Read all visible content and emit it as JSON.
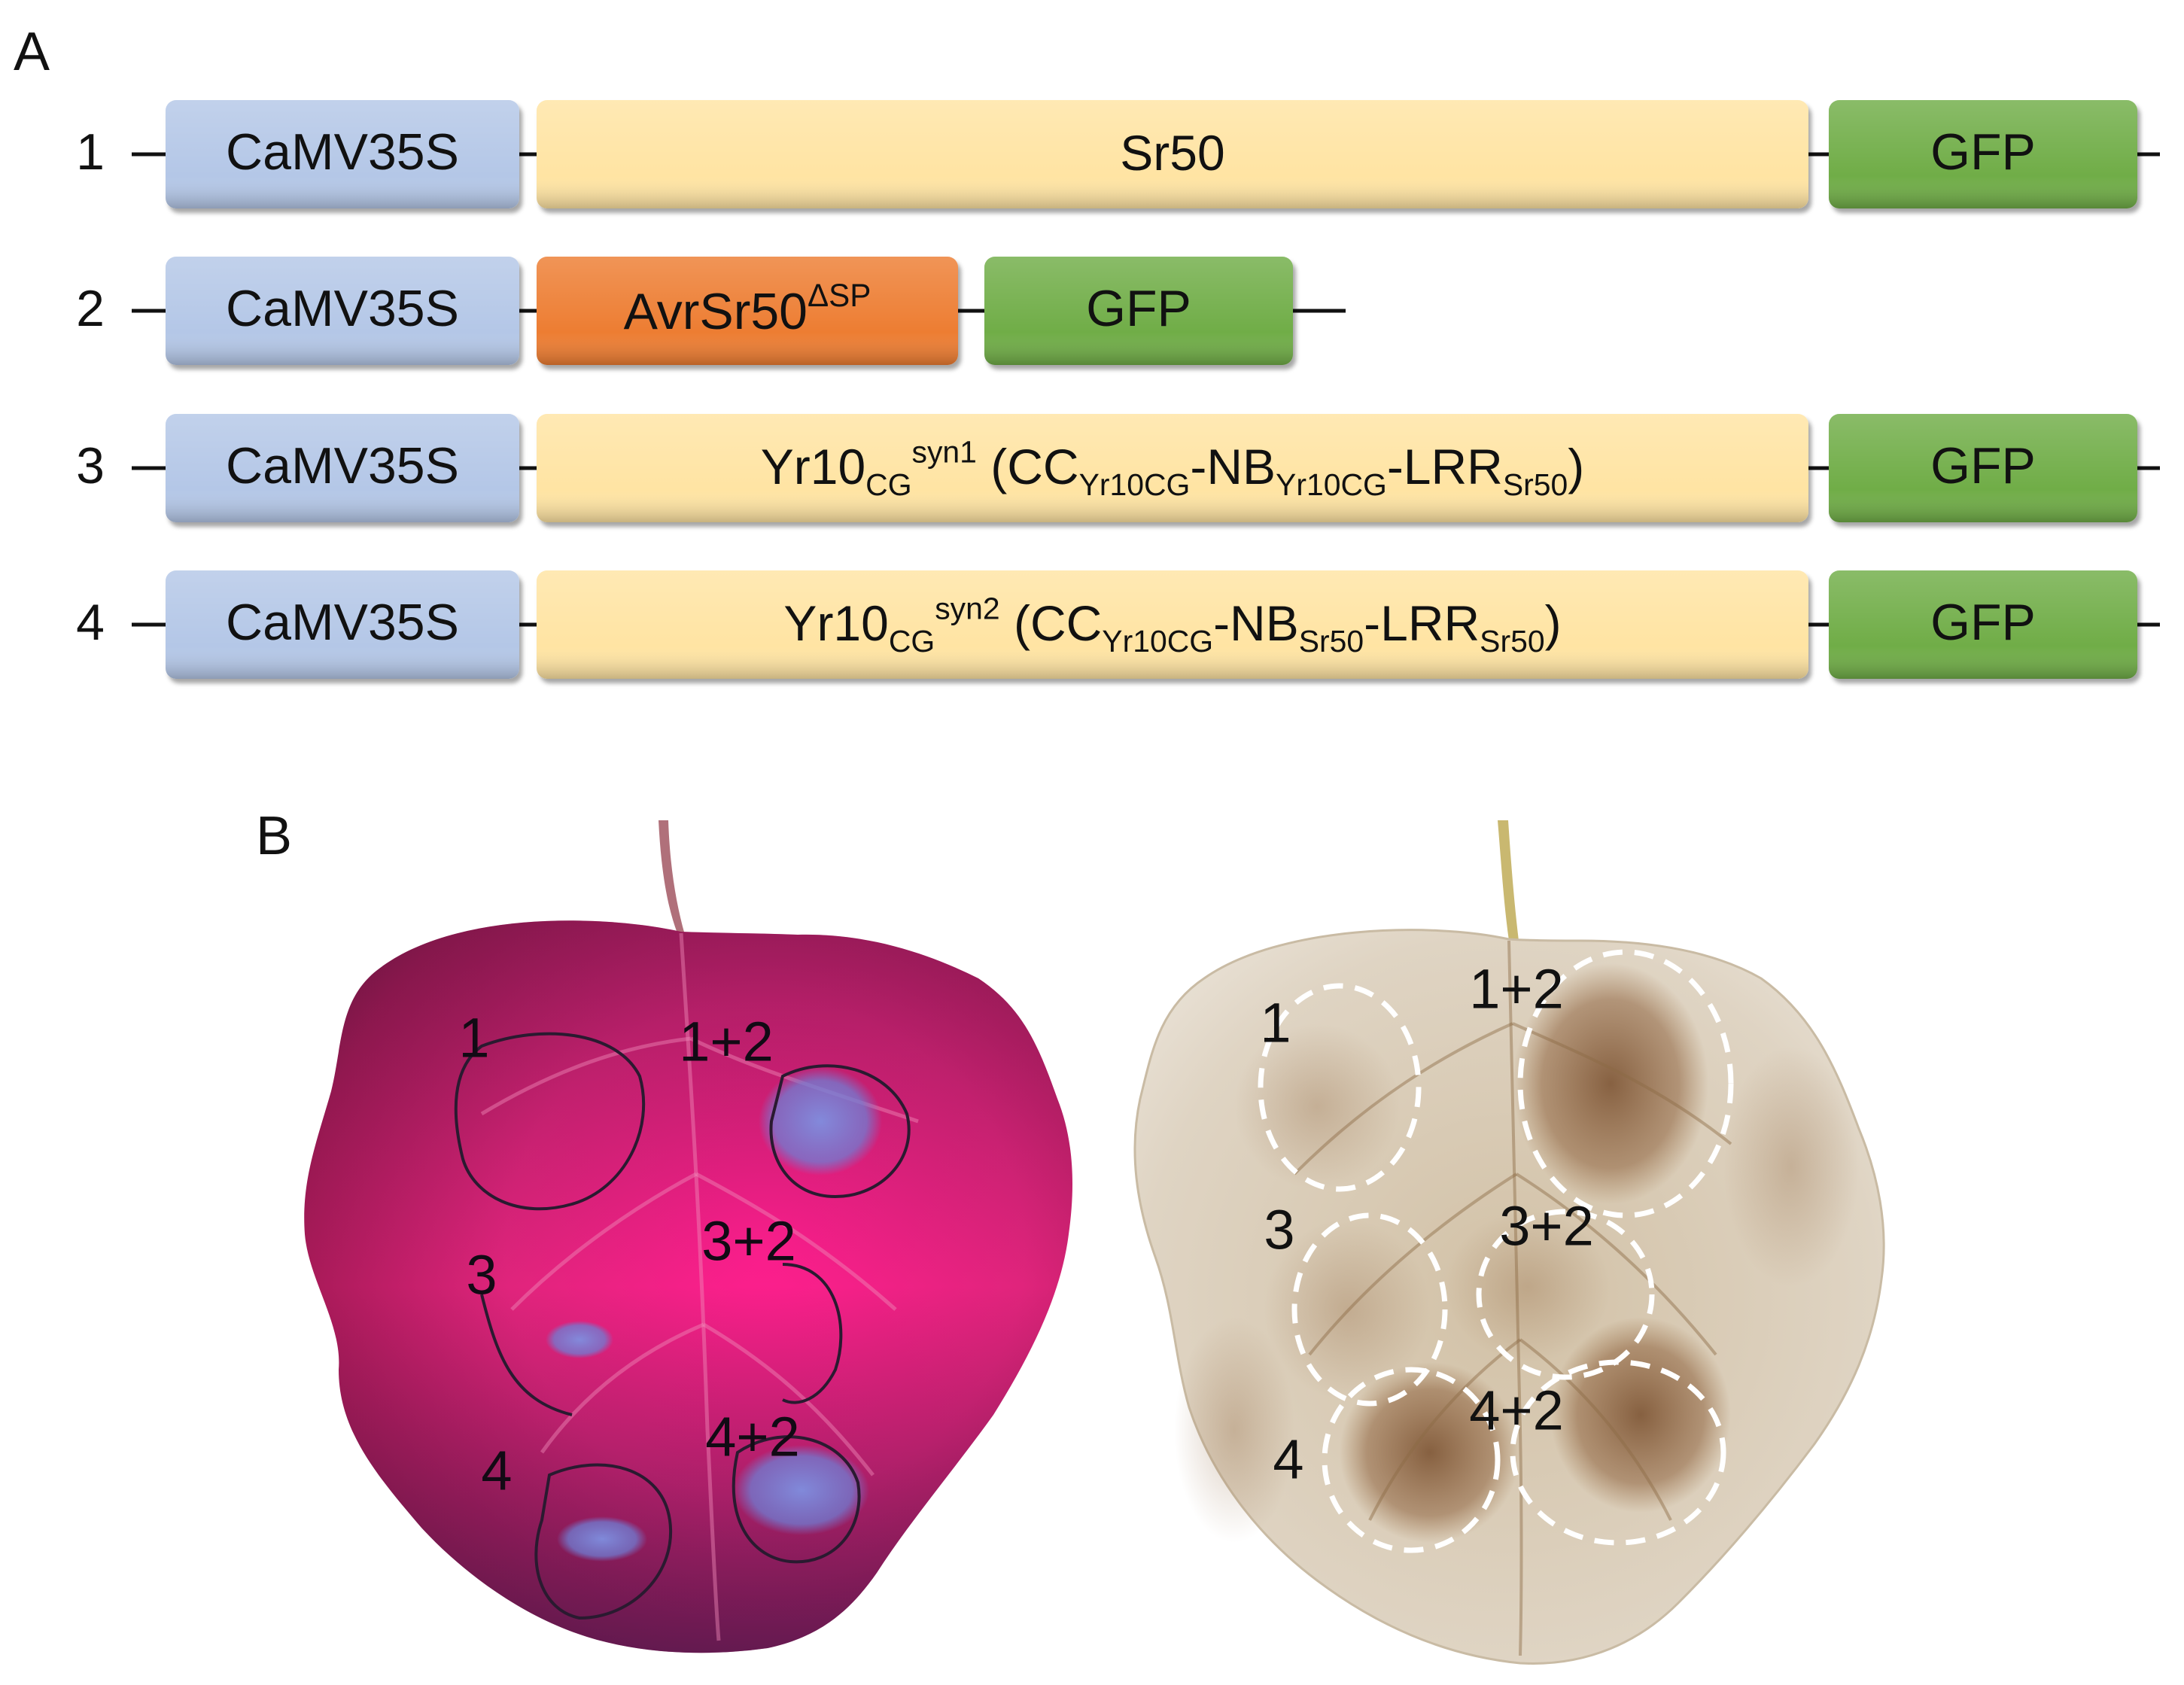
{
  "panel_a": {
    "label": "A",
    "constructs": [
      {
        "number": "1",
        "promoter": "CaMV35S",
        "gene": {
          "base": "Sr50",
          "parts": [
            {
              "t": "Sr50"
            }
          ]
        },
        "tag": "GFP",
        "colors": {
          "gene": "#ffe4a3"
        }
      },
      {
        "number": "2",
        "promoter": "CaMV35S",
        "gene": {
          "base": "AvrSr50ΔSP",
          "parts": [
            {
              "t": "AvrSr50"
            },
            {
              "t": "ΔSP",
              "s": "sup"
            }
          ]
        },
        "tag": "GFP",
        "colors": {
          "gene": "#ed7d31"
        }
      },
      {
        "number": "3",
        "promoter": "CaMV35S",
        "gene": {
          "base": "Yr10CG syn1 (CCYr10CG-NBYr10CG-LRRSr50)",
          "parts": [
            {
              "t": "Yr10"
            },
            {
              "t": "CG",
              "s": "sub"
            },
            {
              "t": "syn1",
              "s": "sup"
            },
            {
              "t": " (CC"
            },
            {
              "t": "Yr10CG",
              "s": "sub"
            },
            {
              "t": "-NB"
            },
            {
              "t": "Yr10CG",
              "s": "sub"
            },
            {
              "t": "-LRR"
            },
            {
              "t": "Sr50",
              "s": "sub"
            },
            {
              "t": ")"
            }
          ]
        },
        "tag": "GFP",
        "colors": {
          "gene": "#ffe4a3"
        }
      },
      {
        "number": "4",
        "promoter": "CaMV35S",
        "gene": {
          "base": "Yr10CG syn2 (CCYr10CG-NBSr50-LRRSr50)",
          "parts": [
            {
              "t": "Yr10"
            },
            {
              "t": "CG",
              "s": "sub"
            },
            {
              "t": "syn2",
              "s": "sup"
            },
            {
              "t": " (CC"
            },
            {
              "t": "Yr10CG",
              "s": "sub"
            },
            {
              "t": "-NB"
            },
            {
              "t": "Sr50",
              "s": "sub"
            },
            {
              "t": "-LRR"
            },
            {
              "t": "Sr50",
              "s": "sub"
            },
            {
              "t": ")"
            }
          ]
        },
        "tag": "GFP",
        "colors": {
          "gene": "#ffe4a3"
        }
      }
    ],
    "colors": {
      "promoter": "#b4c7e7",
      "tag": "#70ad47",
      "avr": "#ed7d31"
    }
  },
  "panel_b": {
    "label": "B",
    "uv_leaf": {
      "spots": [
        "1",
        "1+2",
        "3",
        "3+2",
        "4",
        "4+2"
      ],
      "colors": {
        "leaf": "#d6247a",
        "fluorescence": "#7b89d8"
      }
    },
    "dab_leaf": {
      "spots": [
        "1",
        "1+2",
        "3",
        "3+2",
        "4",
        "4+2"
      ],
      "colors": {
        "leaf": "#d9cdb8",
        "stain": "#8a5a2c"
      }
    }
  }
}
